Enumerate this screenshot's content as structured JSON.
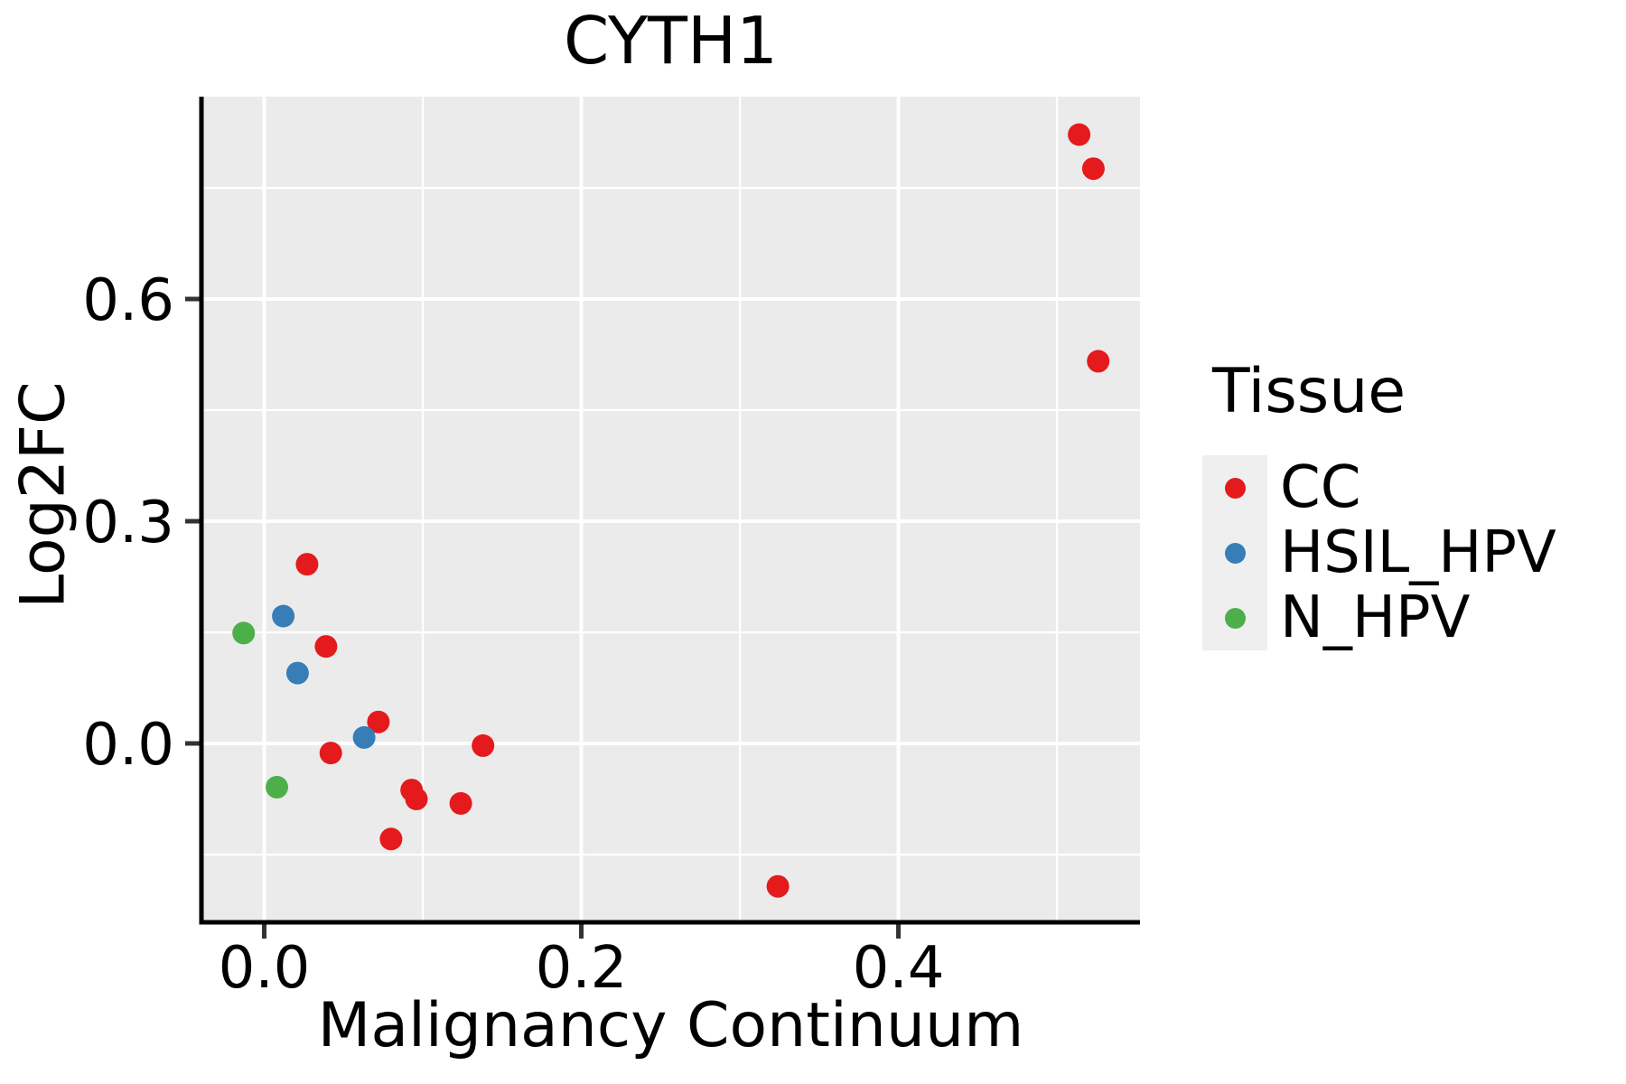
{
  "chart_data": {
    "type": "scatter",
    "title": "CYTH1",
    "xlabel": "Malignancy Continuum",
    "ylabel": "Log2FC",
    "xlim": [
      -0.0396,
      0.5524
    ],
    "ylim": [
      -0.2415,
      0.8732
    ],
    "xticks": {
      "values": [
        0.0,
        0.2,
        0.4
      ],
      "labels": [
        "0.0",
        "0.2",
        "0.4"
      ]
    },
    "yticks": {
      "values": [
        0.0,
        0.3,
        0.6
      ],
      "labels": [
        "0.0",
        "0.3",
        "0.6"
      ]
    },
    "xticks_minor": [
      0.1,
      0.3,
      0.5
    ],
    "yticks_minor": [
      -0.15,
      0.15,
      0.45,
      0.75
    ],
    "grid": true,
    "legend_position": "right",
    "panel_background": "#EBEBEB",
    "gridline_color": "#FFFFFF",
    "axis_color": "#000000",
    "tick_color": "#333333",
    "legend_key_background": "#EFEFEF",
    "series": [
      {
        "name": "CC",
        "color": "#E41A1C",
        "points": [
          [
            0.514,
            0.822
          ],
          [
            0.523,
            0.776
          ],
          [
            0.526,
            0.516
          ],
          [
            0.027,
            0.242
          ],
          [
            0.039,
            0.131
          ],
          [
            0.072,
            0.029
          ],
          [
            0.042,
            -0.013
          ],
          [
            0.138,
            -0.003
          ],
          [
            0.093,
            -0.063
          ],
          [
            0.096,
            -0.075
          ],
          [
            0.124,
            -0.081
          ],
          [
            0.08,
            -0.129
          ],
          [
            0.324,
            -0.193
          ]
        ]
      },
      {
        "name": "HSIL_HPV",
        "color": "#377EB8",
        "points": [
          [
            0.012,
            0.172
          ],
          [
            0.021,
            0.095
          ],
          [
            0.063,
            0.008
          ]
        ]
      },
      {
        "name": "N_HPV",
        "color": "#4DAF4A",
        "points": [
          [
            -0.013,
            0.149
          ],
          [
            0.008,
            -0.059
          ]
        ]
      }
    ],
    "legend": {
      "title": "Tissue"
    }
  }
}
